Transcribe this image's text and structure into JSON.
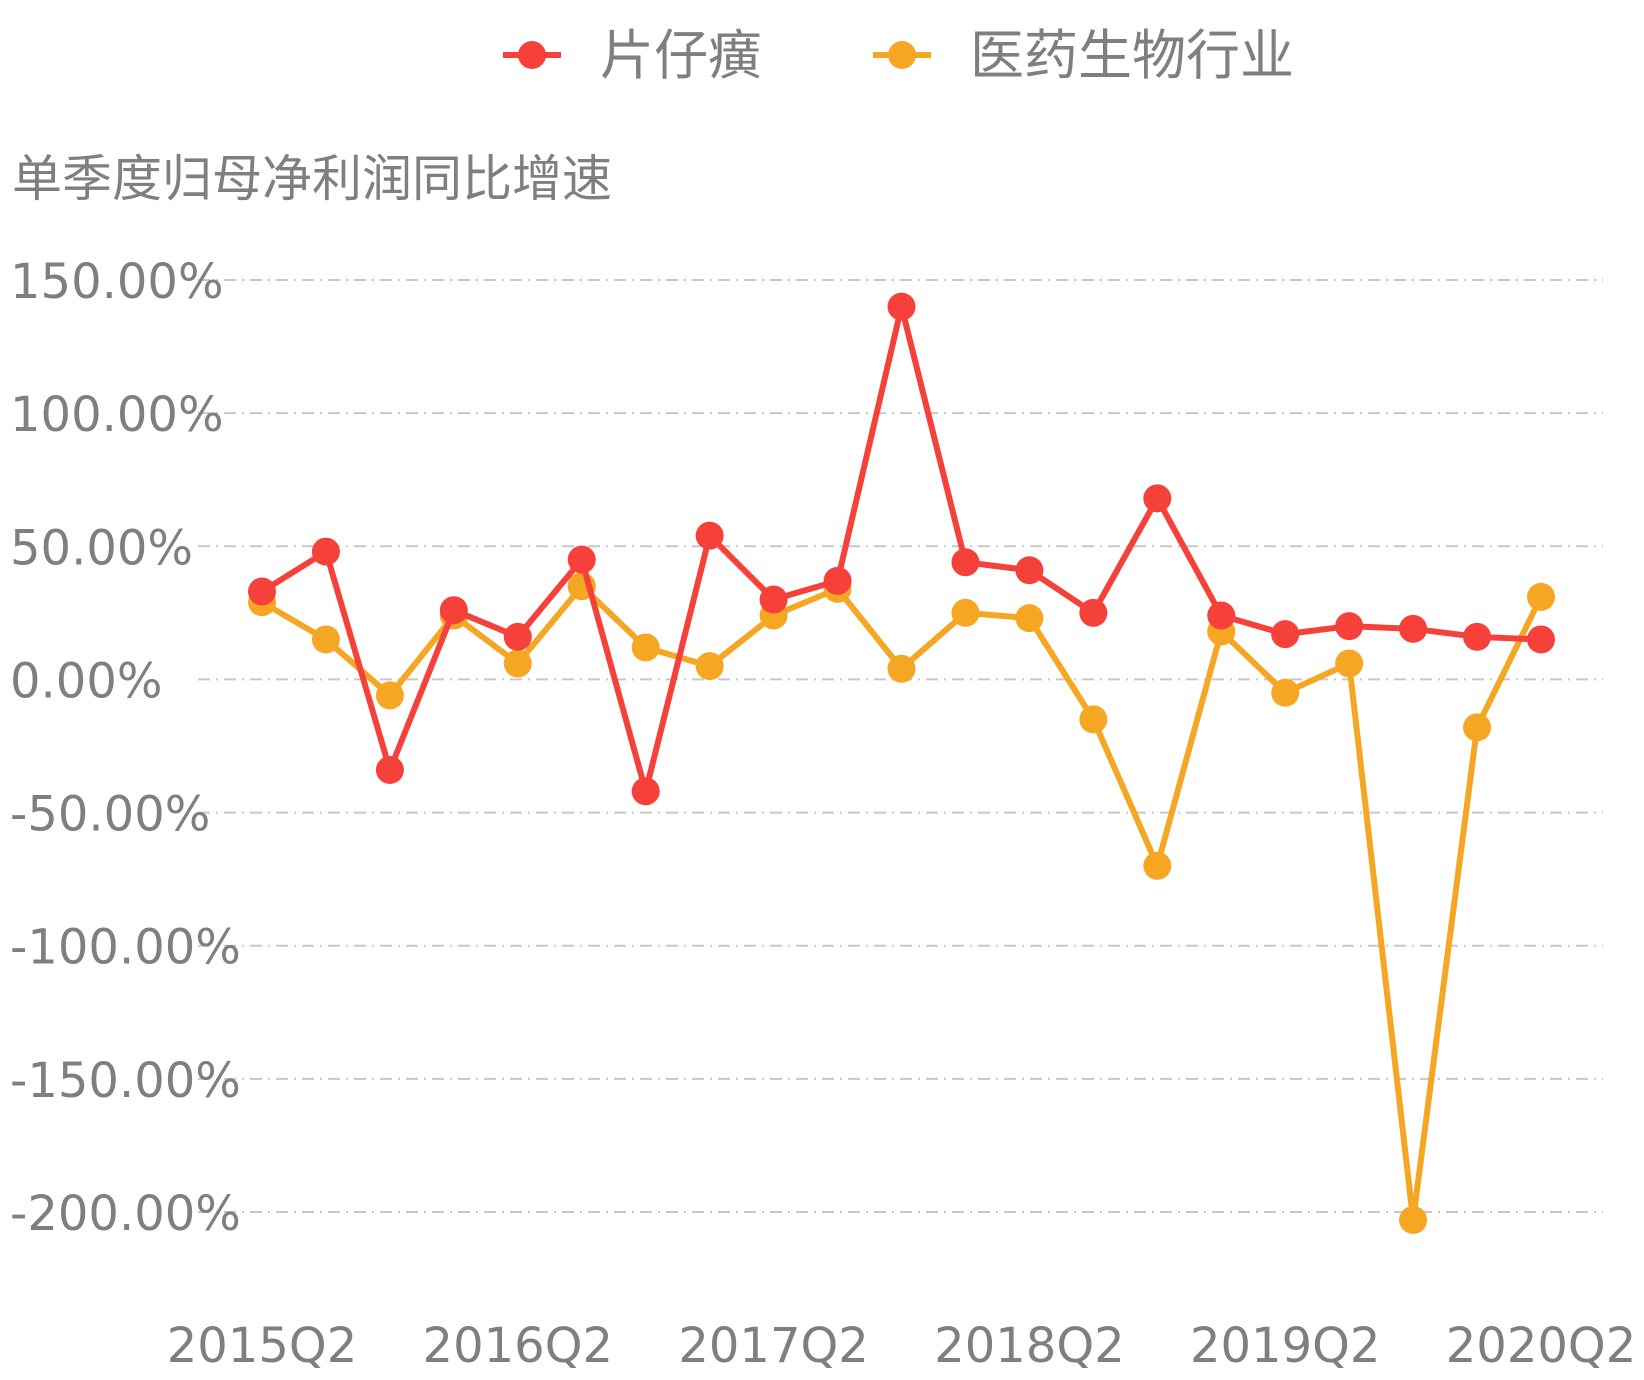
{
  "chart_data": {
    "type": "line",
    "title": "",
    "xlabel": "",
    "ylabel": "单季度归母净利润同比增速",
    "ylim": [
      -200,
      150
    ],
    "yticks": [
      150,
      100,
      50,
      0,
      -50,
      -100,
      -150,
      -200
    ],
    "ytick_labels": [
      "150.00%",
      "100.00%",
      "50.00%",
      "0.00%",
      "-50.00%",
      "-100.00%",
      "-150.00%",
      "-200.00%"
    ],
    "categories": [
      "2015Q2",
      "2015Q3",
      "2015Q4",
      "2016Q1",
      "2016Q2",
      "2016Q3",
      "2016Q4",
      "2017Q1",
      "2017Q2",
      "2017Q3",
      "2017Q4",
      "2018Q1",
      "2018Q2",
      "2018Q3",
      "2018Q4",
      "2019Q1",
      "2019Q2",
      "2019Q3",
      "2019Q4",
      "2020Q1",
      "2020Q2"
    ],
    "xtick_labels": [
      "2015Q2",
      "2016Q2",
      "2017Q2",
      "2018Q2",
      "2019Q2",
      "2020Q2"
    ],
    "legend_position": "top-center",
    "grid": true,
    "series": [
      {
        "name": "片仔癀",
        "color": "#f5413a",
        "values": [
          33,
          48,
          -34,
          26,
          16,
          45,
          -42,
          54,
          30,
          37,
          140,
          44,
          41,
          25,
          68,
          24,
          17,
          20,
          19,
          16,
          15
        ]
      },
      {
        "name": "医药生物行业",
        "color": "#f5a623",
        "values": [
          29,
          15,
          -6,
          24,
          6,
          35,
          12,
          5,
          24,
          34,
          4,
          25,
          23,
          -15,
          -70,
          18,
          -5,
          6,
          -203,
          -18,
          31
        ]
      }
    ]
  }
}
